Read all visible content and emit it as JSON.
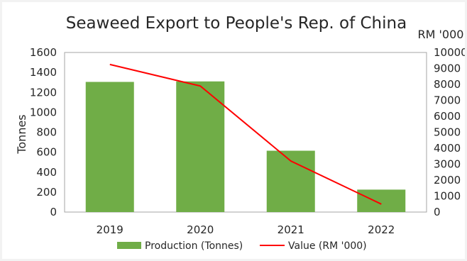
{
  "colors": {
    "bar": "#70ad47",
    "line": "#ff0000",
    "grid": "#d9d9d9",
    "axis": "#a6a6a6",
    "background": "#ffffff",
    "page_background": "#f2f2f2"
  },
  "chart_data": {
    "type": "bar",
    "title": "Seaweed Export to People's Rep. of China",
    "ylabel": "Tonnes",
    "y2label": "RM '000",
    "xlabel": "",
    "categories": [
      "2019",
      "2020",
      "2021",
      "2022"
    ],
    "ylim": [
      0,
      1600
    ],
    "y2lim": [
      0,
      10000
    ],
    "yticks": [
      "0",
      "200",
      "400",
      "600",
      "800",
      "1000",
      "1200",
      "1400",
      "1600"
    ],
    "y2ticks": [
      "0",
      "1000",
      "2000",
      "3000",
      "4000",
      "5000",
      "6000",
      "7000",
      "8000",
      "9000",
      "10000"
    ],
    "grid": false,
    "legend_position": "bottom",
    "series": [
      {
        "name": "Production (Tonnes)",
        "type": "bar",
        "axis": "left",
        "values": [
          1305,
          1310,
          615,
          225
        ]
      },
      {
        "name": "Value (RM '000)",
        "type": "line",
        "axis": "right",
        "values": [
          9250,
          7900,
          3200,
          500
        ]
      }
    ]
  }
}
